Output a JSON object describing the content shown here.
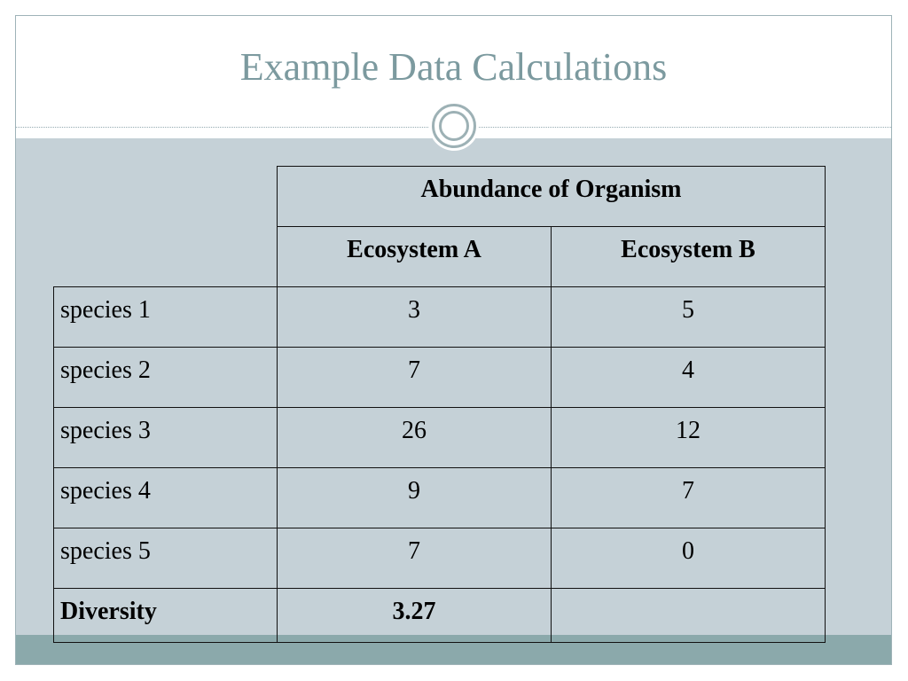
{
  "slide": {
    "title": "Example Data Calculations"
  },
  "table": {
    "group_header": "Abundance of Organism",
    "columns": [
      "Ecosystem A",
      "Ecosystem B"
    ],
    "rows": [
      {
        "label": "species 1",
        "a": "3",
        "b": "5"
      },
      {
        "label": "species 2",
        "a": "7",
        "b": "4"
      },
      {
        "label": "species 3",
        "a": "26",
        "b": "12"
      },
      {
        "label": "species 4",
        "a": "9",
        "b": "7"
      },
      {
        "label": "species 5",
        "a": "7",
        "b": "0"
      }
    ],
    "footer": {
      "label": "Diversity",
      "a": "3.27",
      "b": ""
    }
  }
}
